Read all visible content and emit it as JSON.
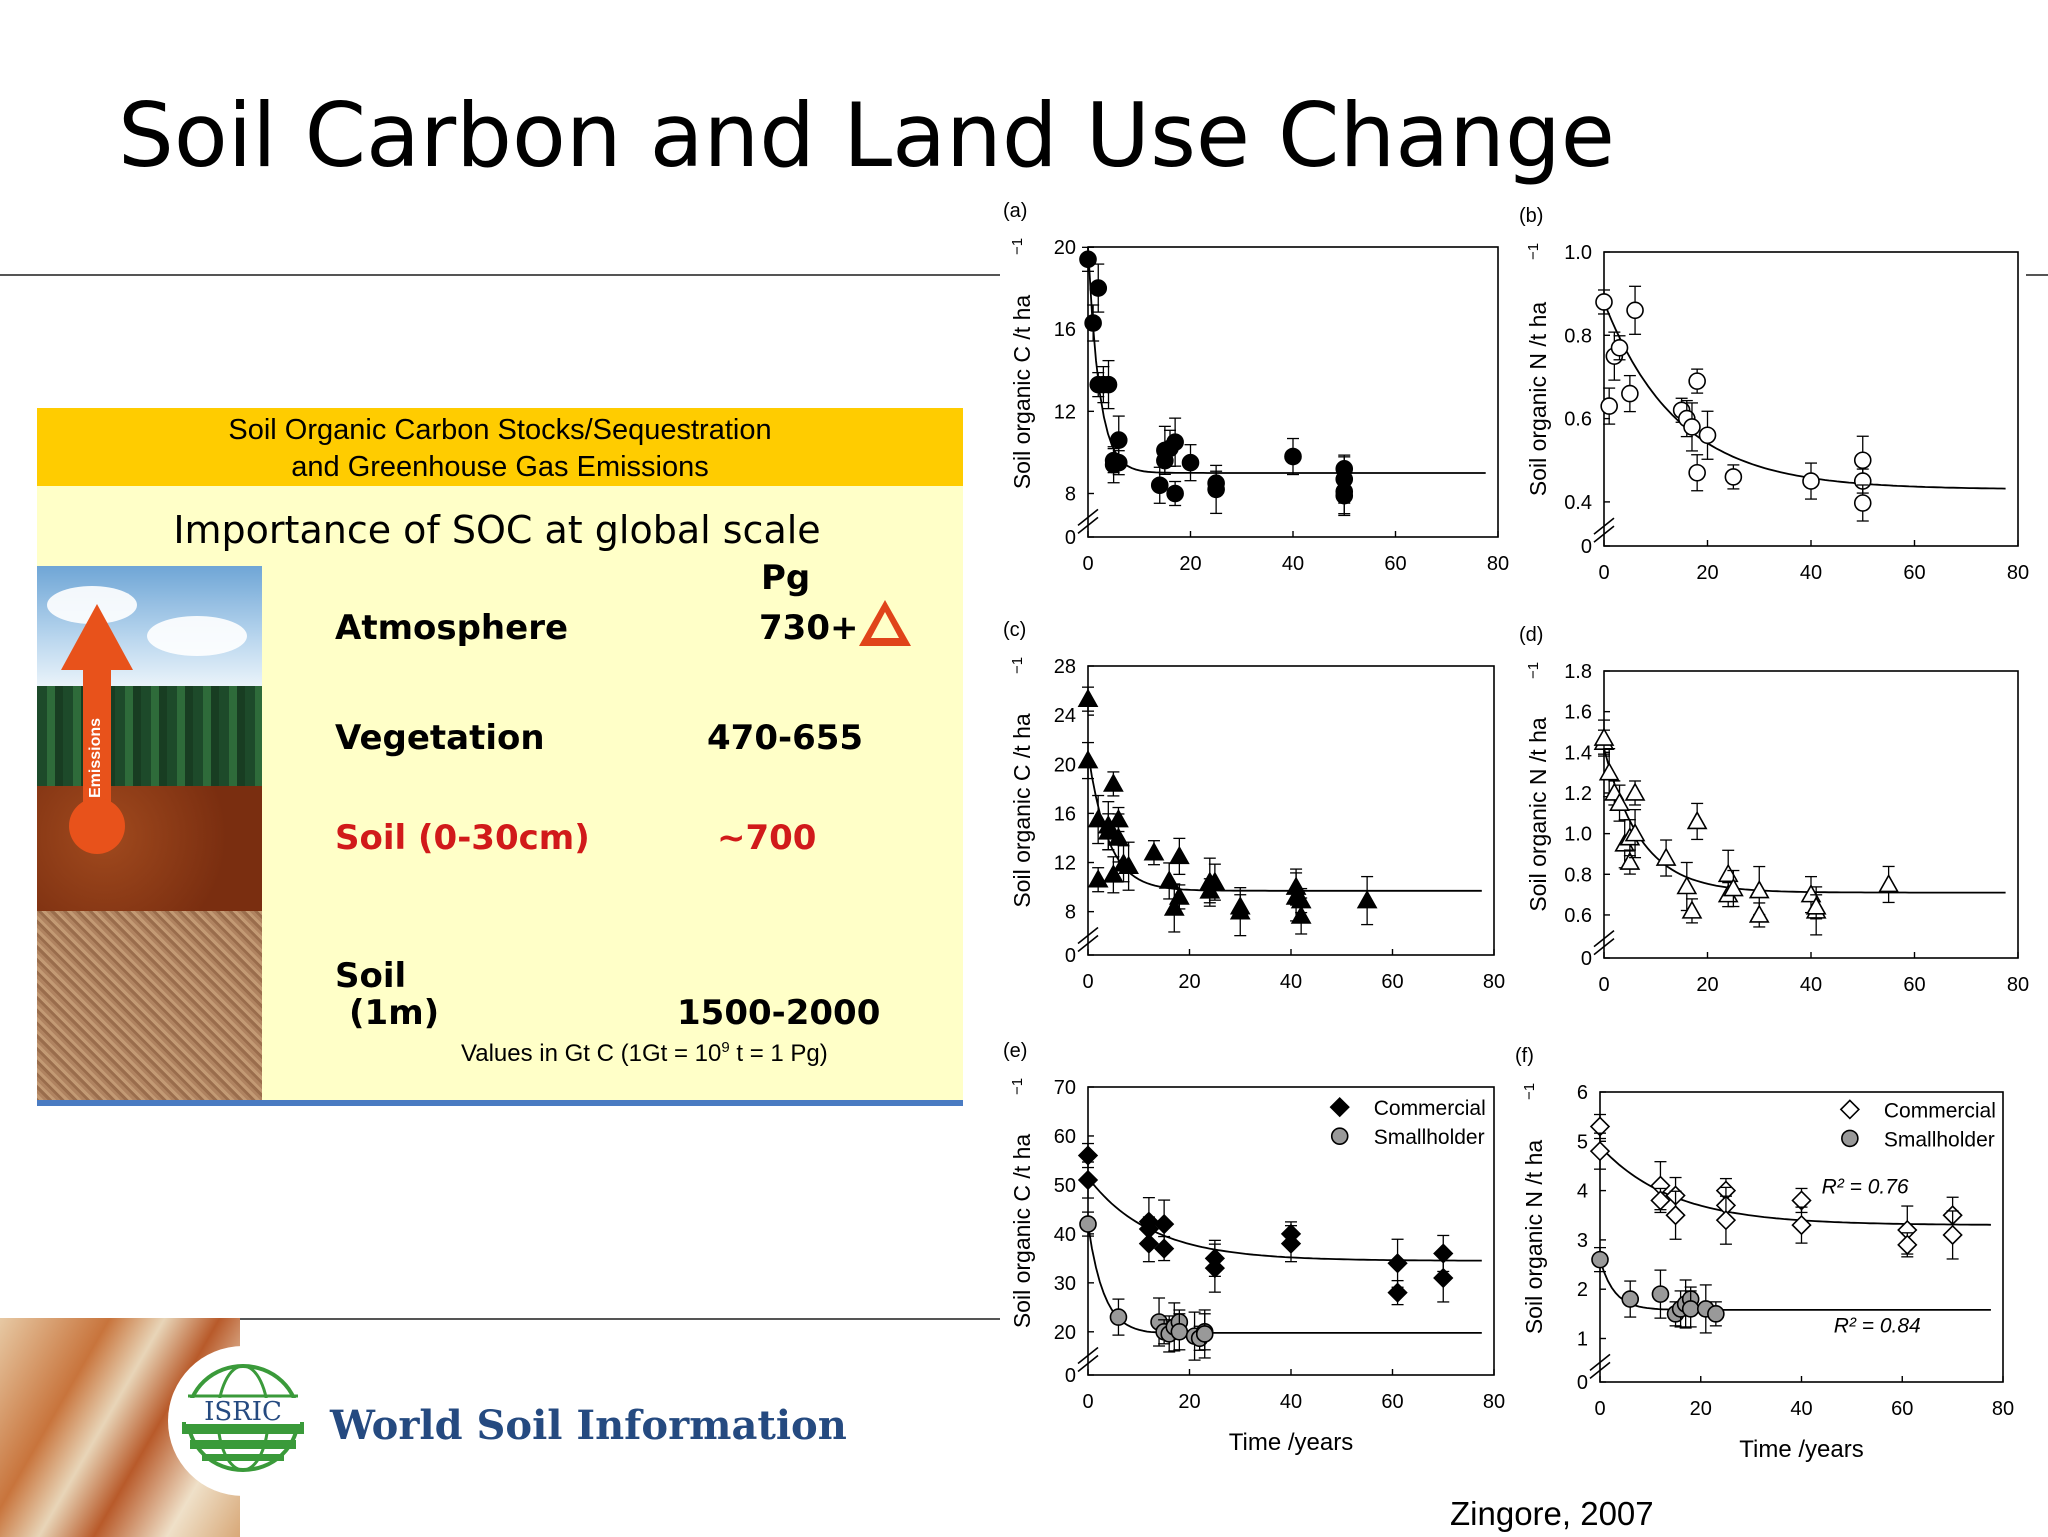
{
  "slide": {
    "title": "Soil Carbon and Land Use Change",
    "citation": "Zingore, 2007"
  },
  "inset": {
    "header_line1": "Soil Organic Carbon Stocks/Sequestration",
    "header_line2": "and Greenhouse Gas Emissions",
    "subtitle": "Importance of SOC at global scale",
    "unit": "Pg",
    "arrow_label": "Emissions",
    "rows": [
      {
        "label": "Atmosphere",
        "value": "730+"
      },
      {
        "label": "Vegetation",
        "value": "470-655"
      },
      {
        "label": "Soil (0-30cm)",
        "value": "~700"
      },
      {
        "label": "Soil",
        "label2": "(1m)",
        "value": "1500-2000"
      }
    ],
    "note_pre": "Values in Gt C (1Gt = 10",
    "note_sup": "9",
    "note_post": " t = 1 Pg)"
  },
  "logo": {
    "text": "ISRIC",
    "name": "World Soil Information"
  },
  "chart_data": [
    {
      "panel": "(a)",
      "type": "scatter",
      "ylabel": "Soil organic C /t ha",
      "xlim": [
        0,
        80
      ],
      "ylim": [
        0,
        20
      ],
      "xticks": [
        0,
        20,
        40,
        60,
        80
      ],
      "yticks": [
        0,
        8,
        12,
        16,
        20
      ],
      "series": [
        {
          "marker": "filled-circle",
          "x": [
            0,
            1,
            2,
            2,
            3,
            4,
            5,
            5,
            6,
            6,
            14,
            15,
            15,
            16,
            17,
            17,
            20,
            25,
            25,
            40,
            50,
            50,
            50,
            50
          ],
          "y": [
            19.4,
            16.3,
            18,
            13.3,
            13.3,
            13.3,
            9.6,
            9.4,
            10.6,
            9.5,
            8.4,
            10.1,
            9.6,
            10.2,
            10.5,
            8,
            9.5,
            8.2,
            8.5,
            9.8,
            8.7,
            9.2,
            7.6,
            8.1
          ]
        }
      ],
      "curve": {
        "asymptote": 9,
        "start": 20,
        "rate": 0.45
      }
    },
    {
      "panel": "(b)",
      "type": "scatter",
      "ylabel": "Soil organic N /t ha",
      "xlim": [
        0,
        80
      ],
      "ylim": [
        0,
        1
      ],
      "xticks": [
        0,
        20,
        40,
        60,
        80
      ],
      "yticks": [
        0,
        0.4,
        0.6,
        0.8,
        1.0
      ],
      "series": [
        {
          "marker": "open-circle",
          "x": [
            0,
            1,
            2,
            3,
            5,
            6,
            15,
            16,
            17,
            18,
            18,
            20,
            25,
            40,
            50,
            50,
            50
          ],
          "y": [
            0.88,
            0.63,
            0.75,
            0.77,
            0.66,
            0.86,
            0.62,
            0.6,
            0.58,
            0.69,
            0.47,
            0.56,
            0.46,
            0.45,
            0.5,
            0.45,
            0.39
          ]
        }
      ],
      "curve": {
        "asymptote": 0.43,
        "start": 0.88,
        "rate": 0.07
      }
    },
    {
      "panel": "(c)",
      "type": "scatter",
      "ylabel": "Soil organic C /t ha",
      "xlim": [
        0,
        80
      ],
      "ylim": [
        0,
        28
      ],
      "xticks": [
        0,
        20,
        40,
        60,
        80
      ],
      "yticks": [
        0,
        8,
        12,
        16,
        20,
        24,
        28
      ],
      "series": [
        {
          "marker": "filled-triangle",
          "x": [
            0,
            0,
            2,
            2,
            4,
            4,
            5,
            5,
            6,
            6,
            7,
            8,
            13,
            16,
            17,
            18,
            18,
            24,
            24,
            25,
            30,
            30,
            41,
            41,
            42,
            42,
            55
          ],
          "y": [
            25.3,
            20.3,
            15.5,
            10.6,
            14.5,
            15,
            18.4,
            11,
            14,
            15.5,
            11.9,
            11.7,
            12.8,
            10.5,
            8.3,
            9.2,
            12.5,
            10.4,
            9.7,
            10.4,
            8,
            8.4,
            10,
            9.2,
            8.9,
            7.2,
            8.9
          ]
        }
      ],
      "curve": {
        "asymptote": 9.7,
        "start": 21,
        "rate": 0.25
      }
    },
    {
      "panel": "(d)",
      "type": "scatter",
      "ylabel": "Soil organic N /t ha",
      "xlim": [
        0,
        80
      ],
      "ylim": [
        0,
        1.8
      ],
      "xticks": [
        0,
        20,
        40,
        60,
        80
      ],
      "yticks": [
        0,
        0.6,
        0.8,
        1.0,
        1.2,
        1.4,
        1.6,
        1.8
      ],
      "series": [
        {
          "marker": "open-triangle",
          "x": [
            0,
            0,
            1,
            2,
            3,
            4,
            5,
            5,
            6,
            6,
            12,
            16,
            17,
            18,
            24,
            24,
            25,
            30,
            30,
            40,
            41,
            41,
            55
          ],
          "y": [
            1.45,
            1.47,
            1.3,
            1.2,
            1.15,
            0.95,
            0.86,
            0.98,
            1.0,
            1.2,
            0.88,
            0.74,
            0.62,
            1.06,
            0.8,
            0.7,
            0.73,
            0.72,
            0.6,
            0.7,
            0.62,
            0.64,
            0.75
          ]
        }
      ],
      "curve": {
        "asymptote": 0.71,
        "start": 1.42,
        "rate": 0.14
      }
    },
    {
      "panel": "(e)",
      "type": "scatter",
      "xlabel": "Time /years",
      "ylabel": "Soil organic C /t ha",
      "xlim": [
        0,
        80
      ],
      "ylim": [
        0,
        70
      ],
      "xticks": [
        0,
        20,
        40,
        60,
        80
      ],
      "yticks": [
        0,
        20,
        30,
        40,
        50,
        60,
        70
      ],
      "legend": [
        "Commercial",
        "Smallholder"
      ],
      "series": [
        {
          "name": "Commercial",
          "marker": "filled-diamond",
          "x": [
            0,
            0,
            12,
            12,
            12,
            15,
            15,
            25,
            25,
            40,
            40,
            61,
            61,
            70,
            70
          ],
          "y": [
            56,
            51,
            42.5,
            41,
            38,
            42,
            37,
            35,
            33,
            40,
            38,
            34,
            28,
            36,
            31
          ],
          "curve": {
            "asymptote": 34.5,
            "start": 51.5,
            "rate": 0.08
          }
        },
        {
          "name": "Smallholder",
          "marker": "grey-circle",
          "x": [
            0,
            6,
            14,
            15,
            16,
            17,
            18,
            18,
            21,
            22,
            23,
            23
          ],
          "y": [
            42,
            23,
            22,
            20,
            19,
            21,
            22,
            20,
            18,
            17,
            20,
            19
          ],
          "curve": {
            "asymptote": 19.5,
            "start": 42,
            "rate": 0.32
          }
        }
      ]
    },
    {
      "panel": "(f)",
      "type": "scatter",
      "xlabel": "Time /years",
      "ylabel": "Soil organic N /t ha",
      "xlim": [
        0,
        80
      ],
      "ylim": [
        0,
        6
      ],
      "xticks": [
        0,
        20,
        40,
        60,
        80
      ],
      "yticks": [
        0,
        1,
        2,
        3,
        4,
        5,
        6
      ],
      "legend": [
        "Commercial",
        "Smallholder"
      ],
      "annotations": [
        {
          "text": "R² = 0.76"
        },
        {
          "text": "R² = 0.84"
        }
      ],
      "series": [
        {
          "name": "Commercial",
          "marker": "open-diamond",
          "x": [
            0,
            0,
            12,
            12,
            15,
            15,
            25,
            25,
            25,
            40,
            40,
            61,
            61,
            70,
            70
          ],
          "y": [
            5.3,
            4.8,
            4.1,
            3.8,
            3.9,
            3.5,
            4.0,
            3.7,
            3.4,
            3.8,
            3.3,
            3.2,
            2.9,
            3.5,
            3.1
          ],
          "curve": {
            "asymptote": 3.3,
            "start": 4.9,
            "rate": 0.07
          }
        },
        {
          "name": "Smallholder",
          "marker": "grey-circle",
          "x": [
            0,
            6,
            12,
            15,
            16,
            17,
            18,
            18,
            21,
            23
          ],
          "y": [
            2.6,
            1.8,
            1.9,
            1.5,
            1.6,
            1.7,
            1.8,
            1.6,
            1.6,
            1.5
          ],
          "curve": {
            "asymptote": 1.58,
            "start": 2.6,
            "rate": 0.35
          }
        }
      ]
    }
  ]
}
